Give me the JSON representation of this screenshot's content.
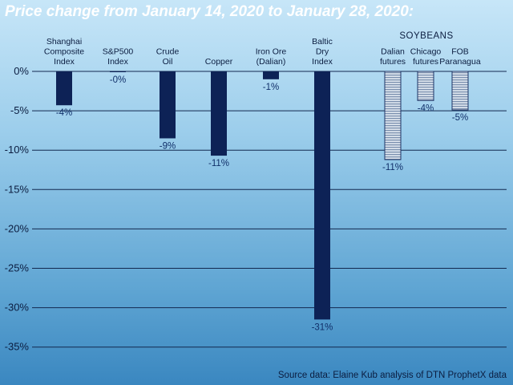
{
  "chart_data": {
    "type": "bar",
    "title": "Price change from January 14, 2020 to January 28, 2020:",
    "source": "Source data: Elaine Kub analysis of DTN ProphetX data",
    "ylim": [
      -35,
      0
    ],
    "yticks": [
      0,
      -5,
      -10,
      -15,
      -20,
      -25,
      -30,
      -35
    ],
    "ytick_labels": [
      "0%",
      "-5%",
      "-10%",
      "-15%",
      "-20%",
      "-25%",
      "-30%",
      "-35%"
    ],
    "grid": true,
    "categories": [
      [
        "Shanghai",
        "Composite",
        "Index"
      ],
      [
        "S&P500",
        "Index"
      ],
      [
        "Crude",
        "Oil"
      ],
      [
        "Copper"
      ],
      [
        "Iron Ore",
        "(Dalian)"
      ],
      [
        "Baltic",
        "Dry",
        "Index"
      ],
      [
        "Dalian",
        "futures"
      ],
      [
        "Chicago",
        "futures"
      ],
      [
        "FOB",
        "Paranagua"
      ]
    ],
    "values": [
      -4.3,
      -0.1,
      -8.5,
      -10.7,
      -1.0,
      -31.5,
      -11.2,
      -3.7,
      -4.9
    ],
    "value_labels": [
      "-4%",
      "-0%",
      "-9%",
      "-11%",
      "-1%",
      "-31%",
      "-11%",
      "-4%",
      "-5%"
    ],
    "styles": [
      "solid",
      "solid",
      "solid",
      "solid",
      "solid",
      "solid",
      "striped",
      "striped",
      "striped"
    ],
    "group_label": {
      "text": "SOYBEANS",
      "categories": [
        6,
        7,
        8
      ]
    },
    "colors": {
      "bar": "#0d2256",
      "stripe": "#7a8fae",
      "grid": "#13284f"
    }
  }
}
